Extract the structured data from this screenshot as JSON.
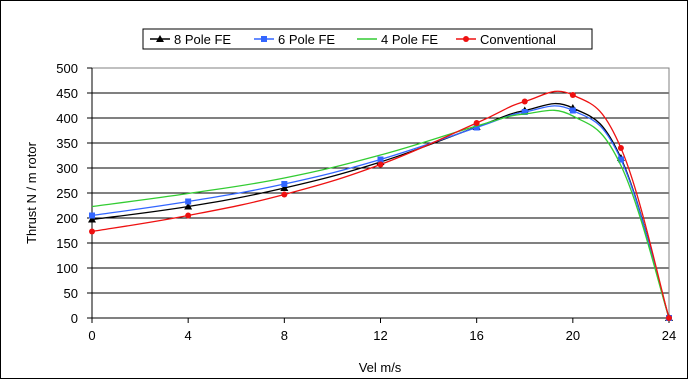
{
  "chart_data": {
    "type": "line",
    "title": "",
    "xlabel": "Vel m/s",
    "ylabel": "Thrust N / m rotor",
    "xlim": [
      0,
      24
    ],
    "ylim": [
      0,
      500
    ],
    "xticks": [
      "0",
      "4",
      "8",
      "12",
      "16",
      "20",
      "24"
    ],
    "yticks": [
      "0",
      "50",
      "100",
      "150",
      "200",
      "250",
      "300",
      "350",
      "400",
      "450",
      "500"
    ],
    "grid": "horizontal",
    "legend_position": "top",
    "series": [
      {
        "name": "8 Pole FE",
        "color": "#000000",
        "marker": "triangle",
        "x": [
          0,
          4,
          8,
          12,
          16,
          18,
          20,
          22,
          24
        ],
        "values": [
          197,
          223,
          260,
          312,
          382,
          415,
          420,
          320,
          0
        ]
      },
      {
        "name": "6 Pole FE",
        "color": "#3366ff",
        "marker": "square",
        "x": [
          0,
          4,
          8,
          12,
          16,
          18,
          20,
          22,
          24
        ],
        "values": [
          205,
          233,
          268,
          317,
          381,
          412,
          415,
          317,
          0
        ]
      },
      {
        "name": "4 Pole FE",
        "color": "#33cc33",
        "marker": "none",
        "x": [
          0,
          4,
          8,
          12,
          16,
          18,
          20,
          22,
          24
        ],
        "values": [
          223,
          249,
          280,
          326,
          384,
          408,
          404,
          305,
          0
        ]
      },
      {
        "name": "Conventional",
        "color": "#ee1111",
        "marker": "circle",
        "x": [
          0,
          4,
          8,
          12,
          16,
          18,
          20,
          22,
          24
        ],
        "values": [
          173,
          205,
          247,
          307,
          390,
          433,
          446,
          340,
          0
        ]
      }
    ]
  }
}
